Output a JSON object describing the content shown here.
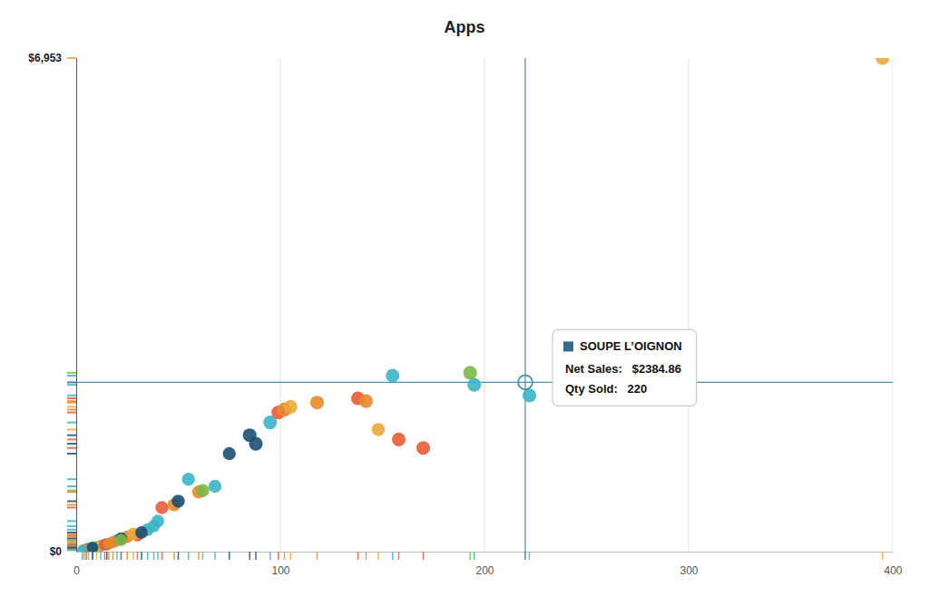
{
  "chart_data": {
    "type": "scatter",
    "title": "Apps",
    "xlim": [
      0,
      400
    ],
    "ylim": [
      0,
      6953
    ],
    "xticks": [
      0,
      100,
      200,
      300,
      400
    ],
    "yticks": [
      {
        "value": 0,
        "label": "$0"
      },
      {
        "value": 6953,
        "label": "$6,953"
      }
    ],
    "grid": true,
    "x": [
      395,
      220,
      155,
      195,
      222,
      193,
      95,
      99,
      102,
      105,
      118,
      138,
      142,
      148,
      158,
      170,
      85,
      88,
      75,
      68,
      55,
      60,
      42,
      48,
      40,
      35,
      38,
      30,
      25,
      28,
      20,
      22,
      15,
      18,
      12,
      10,
      8,
      6,
      5,
      4,
      3,
      8,
      14,
      16,
      22,
      32,
      50,
      62
    ],
    "values": [
      6953,
      2384.86,
      2480,
      2350,
      2200,
      2520,
      1820,
      1960,
      2000,
      2040,
      2100,
      2160,
      2120,
      1720,
      1580,
      1460,
      1640,
      1520,
      1380,
      920,
      1020,
      840,
      620,
      660,
      430,
      310,
      360,
      230,
      210,
      250,
      160,
      185,
      105,
      135,
      82,
      72,
      62,
      47,
      37,
      30,
      22,
      57,
      98,
      112,
      165,
      270,
      710,
      860
    ],
    "sizes": [
      110,
      120,
      110,
      110,
      110,
      110,
      110,
      110,
      120,
      110,
      110,
      110,
      110,
      100,
      110,
      110,
      110,
      110,
      100,
      100,
      100,
      100,
      100,
      100,
      95,
      92,
      92,
      90,
      90,
      90,
      88,
      88,
      85,
      85,
      82,
      80,
      78,
      78,
      75,
      73,
      70,
      78,
      82,
      82,
      85,
      92,
      100,
      100
    ],
    "colors": [
      "#E8A838",
      "#2E6E8E",
      "#3CB4C8",
      "#3CB4C8",
      "#3CB4C8",
      "#7CB846",
      "#3CB4C8",
      "#E85C38",
      "#E8882A",
      "#E8A838",
      "#E8882A",
      "#E85C38",
      "#E8882A",
      "#E8A838",
      "#E85C38",
      "#E85C38",
      "#1B4F72",
      "#1B4F72",
      "#1B4F72",
      "#3CB4C8",
      "#3CB4C8",
      "#E8882A",
      "#E85C38",
      "#E8882A",
      "#3CB4C8",
      "#3CB4C8",
      "#3CB4C8",
      "#E85C38",
      "#E8882A",
      "#E8A838",
      "#3CB4C8",
      "#1B4F72",
      "#1B4F72",
      "#E8882A",
      "#3CB4C8",
      "#E8A838",
      "#3CB4C8",
      "#7CB846",
      "#E85C38",
      "#E8882A",
      "#3CB4C8",
      "#1B4F72",
      "#E85C38",
      "#E8882A",
      "#7CB846",
      "#1B4F72",
      "#1B4F72",
      "#7CB846"
    ],
    "annotations": [
      {
        "x": 220,
        "y": 2384.86,
        "text": "SOUPE L’OIGNON",
        "lines": [
          "Net Sales:   $2384.86",
          "Qty Sold:   220"
        ],
        "color": "#2E6E8E",
        "line_color": "#4A8FA8"
      }
    ]
  }
}
